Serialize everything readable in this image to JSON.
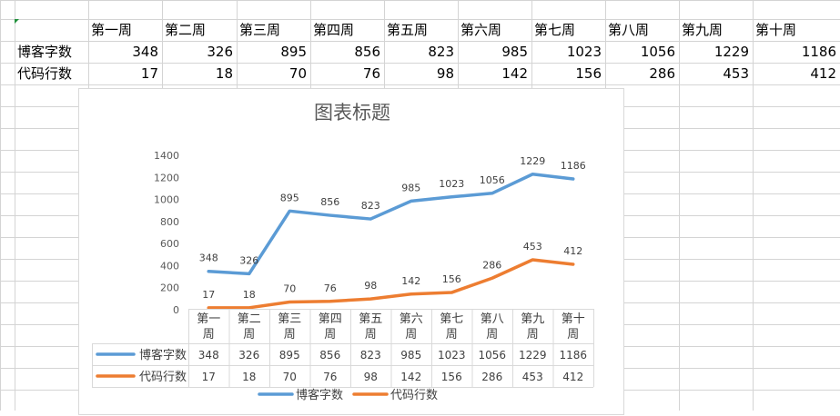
{
  "sheet": {
    "headers": [
      "第一周",
      "第二周",
      "第三周",
      "第四周",
      "第五周",
      "第六周",
      "第七周",
      "第八周",
      "第九周",
      "第十周"
    ],
    "rows": [
      {
        "label": "博客字数",
        "values": [
          "348",
          "326",
          "895",
          "856",
          "823",
          "985",
          "1023",
          "1056",
          "1229",
          "1186"
        ]
      },
      {
        "label": "代码行数",
        "values": [
          "17",
          "18",
          "70",
          "76",
          "98",
          "142",
          "156",
          "286",
          "453",
          "412"
        ]
      }
    ]
  },
  "chart_data": {
    "type": "line",
    "title": "图表标题",
    "categories": [
      "第一周",
      "第二周",
      "第三周",
      "第四周",
      "第五周",
      "第六周",
      "第七周",
      "第八周",
      "第九周",
      "第十周"
    ],
    "series": [
      {
        "name": "博客字数",
        "color": "#5b9bd5",
        "values": [
          348,
          326,
          895,
          856,
          823,
          985,
          1023,
          1056,
          1229,
          1186
        ]
      },
      {
        "name": "代码行数",
        "color": "#ed7d31",
        "values": [
          17,
          18,
          70,
          76,
          98,
          142,
          156,
          286,
          453,
          412
        ]
      }
    ],
    "ylim": [
      0,
      1400
    ],
    "yticks": [
      0,
      200,
      400,
      600,
      800,
      1000,
      1200,
      1400
    ],
    "grid": false,
    "data_labels": true,
    "data_table": true,
    "legend": "bottom"
  }
}
